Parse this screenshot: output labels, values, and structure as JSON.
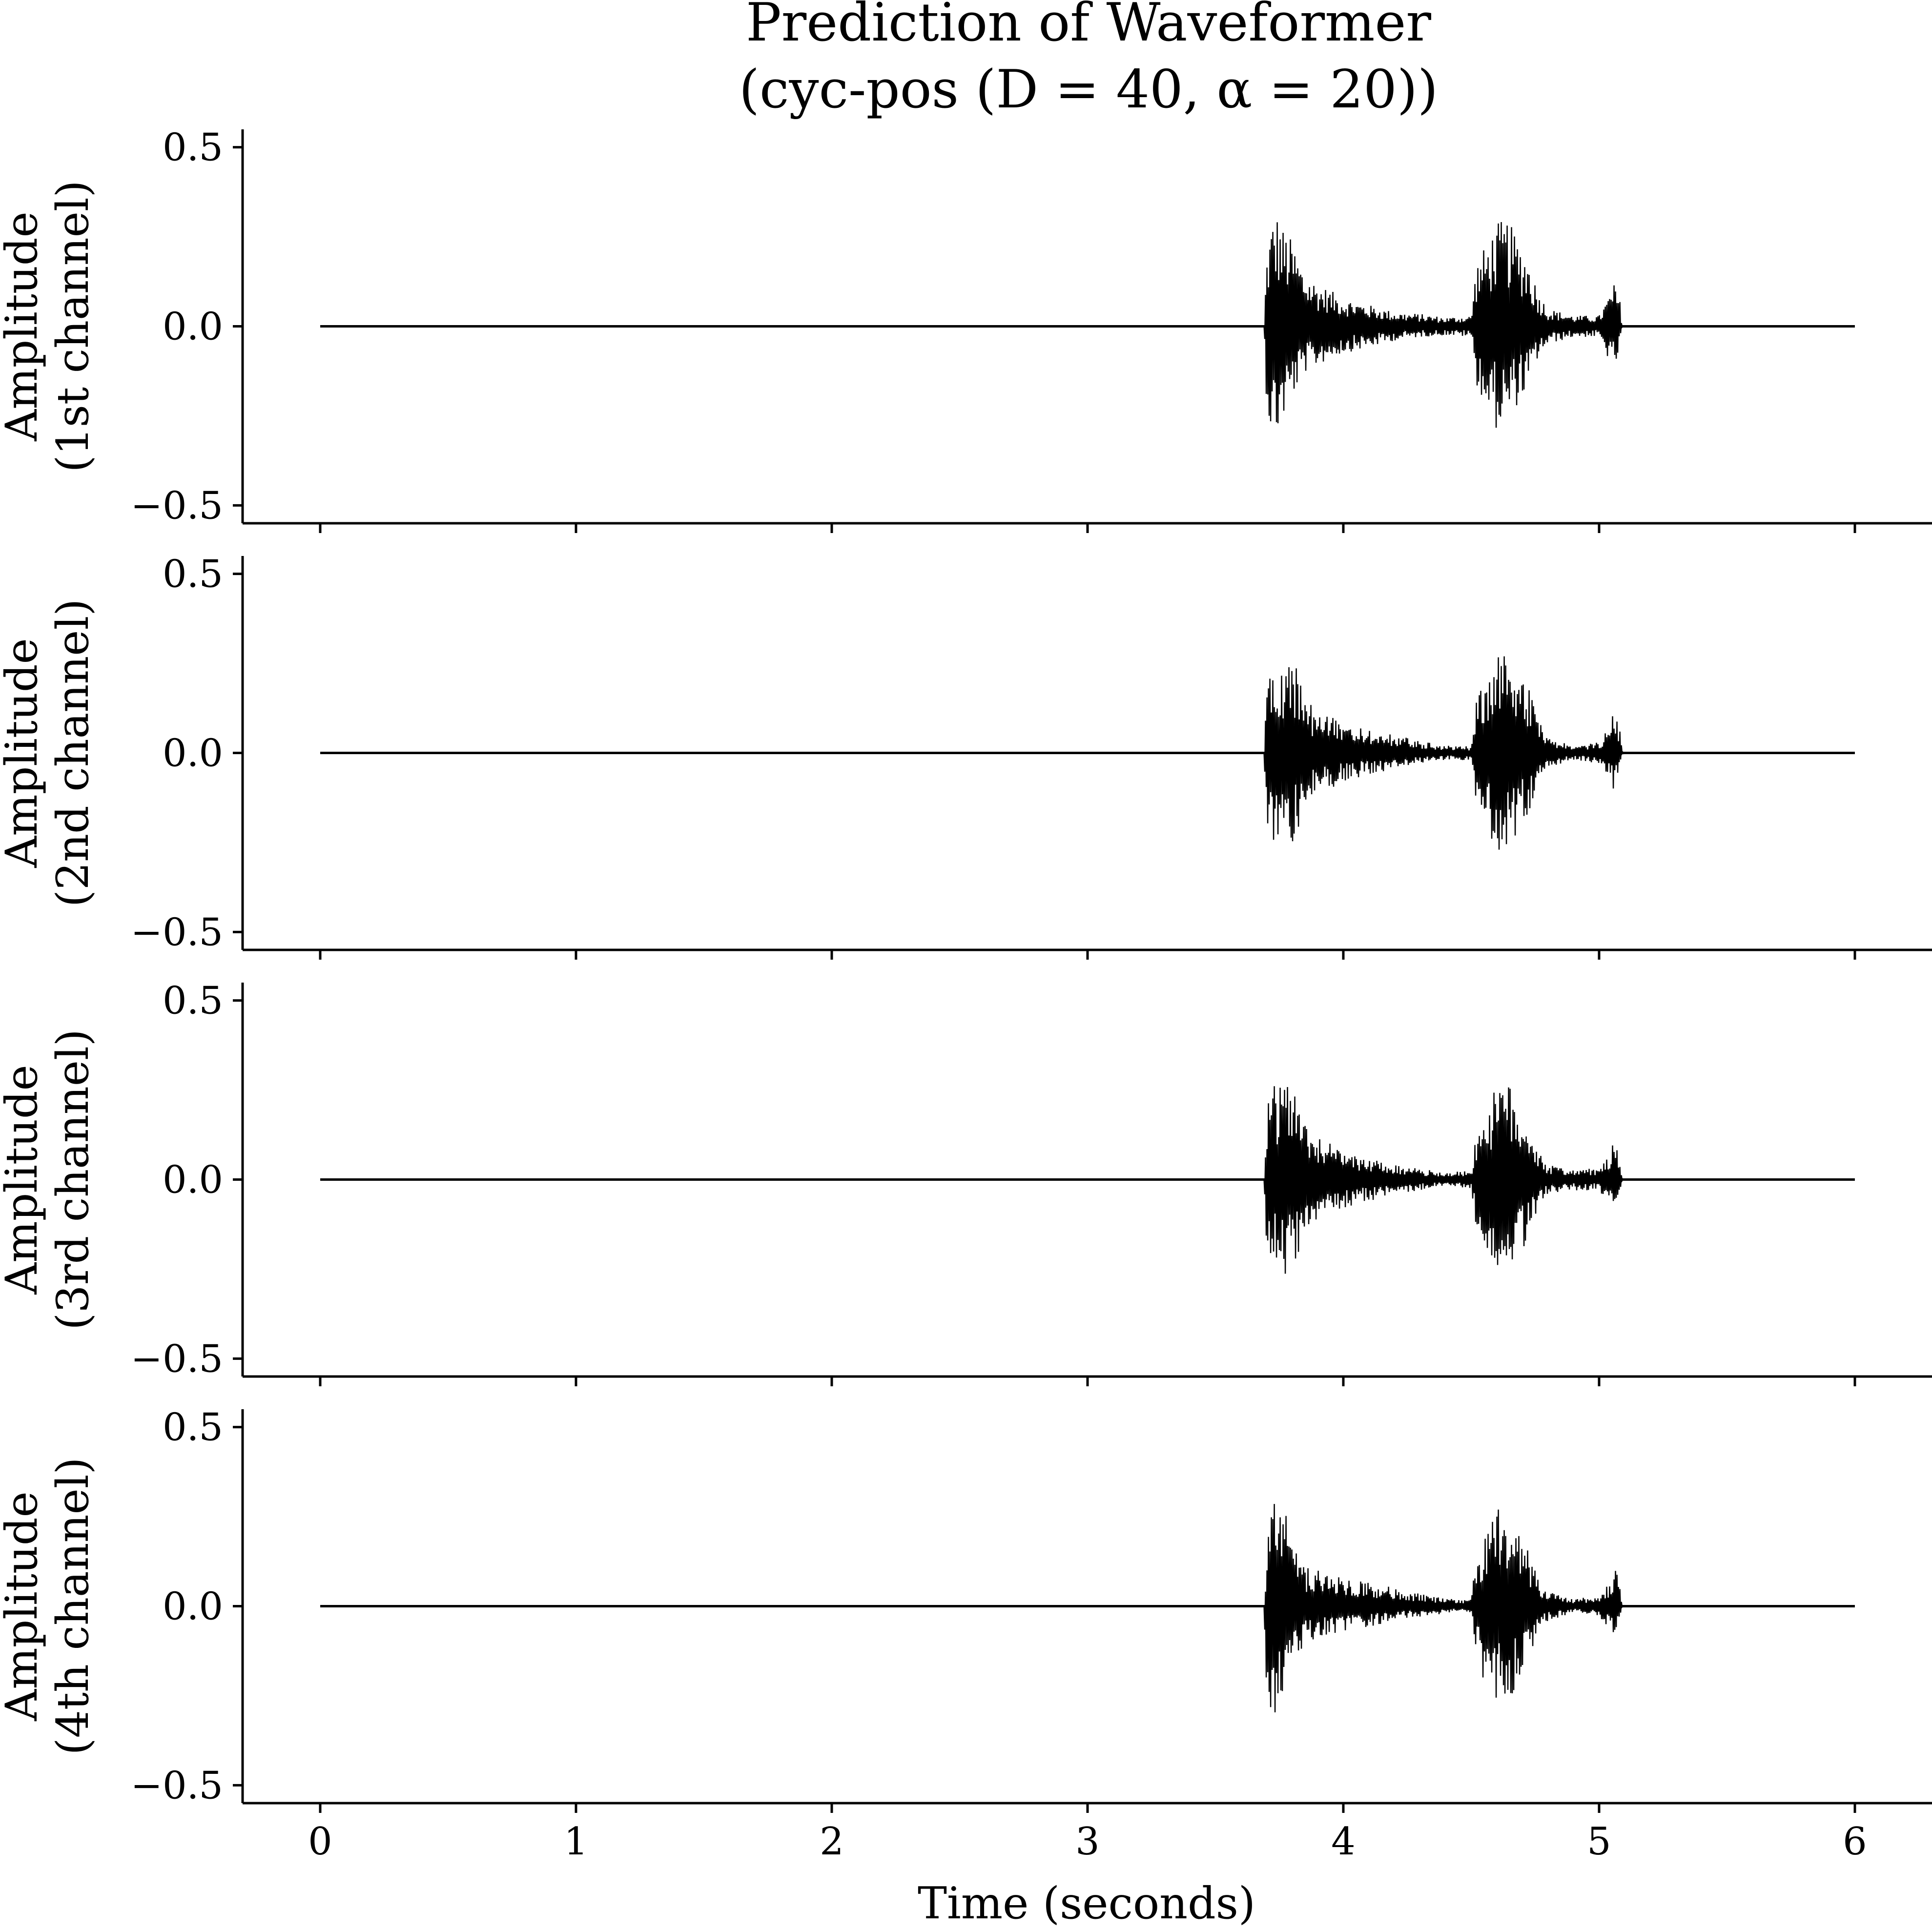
{
  "chart_data": {
    "type": "line",
    "title": "Prediction of Waveformer",
    "subtitle": "(cyc-pos (D = 40, α = 20))",
    "xlabel": "Time (seconds)",
    "xlim": [
      -0.3,
      6.3
    ],
    "ylim": [
      -0.55,
      0.55
    ],
    "x_ticks": [
      "0",
      "1",
      "2",
      "3",
      "4",
      "5",
      "6"
    ],
    "x_tick_values": [
      0,
      1,
      2,
      3,
      4,
      5,
      6
    ],
    "y_ticks": [
      "0.5",
      "0.0",
      "−0.5"
    ],
    "y_tick_values": [
      0.5,
      0.0,
      -0.5
    ],
    "grid": false,
    "line_color": "#000000",
    "panels": [
      {
        "ylabel": [
          "Amplitude",
          "(1st channel)"
        ],
        "envelope": {
          "t": [
            0,
            3.69,
            3.7,
            3.72,
            3.74,
            3.76,
            3.8,
            3.85,
            3.9,
            3.95,
            4.0,
            4.1,
            4.2,
            4.3,
            4.4,
            4.5,
            4.52,
            4.56,
            4.6,
            4.64,
            4.68,
            4.72,
            4.76,
            4.8,
            4.9,
            5.0,
            5.04,
            5.06,
            5.08,
            5.09,
            6.0
          ],
          "upper": [
            0.002,
            0.002,
            0.2,
            0.3,
            0.32,
            0.28,
            0.24,
            0.15,
            0.12,
            0.1,
            0.08,
            0.06,
            0.04,
            0.035,
            0.025,
            0.03,
            0.18,
            0.23,
            0.29,
            0.3,
            0.25,
            0.2,
            0.1,
            0.05,
            0.03,
            0.03,
            0.09,
            0.12,
            0.08,
            0.002,
            0.002
          ],
          "lower": [
            -0.002,
            -0.002,
            -0.22,
            -0.32,
            -0.31,
            -0.27,
            -0.2,
            -0.13,
            -0.11,
            -0.09,
            -0.075,
            -0.06,
            -0.04,
            -0.03,
            -0.025,
            -0.03,
            -0.16,
            -0.24,
            -0.29,
            -0.27,
            -0.22,
            -0.18,
            -0.09,
            -0.05,
            -0.03,
            -0.03,
            -0.1,
            -0.12,
            -0.07,
            -0.002,
            -0.002
          ]
        }
      },
      {
        "ylabel": [
          "Amplitude",
          "(2nd channel)"
        ],
        "envelope": {
          "t": [
            0,
            3.69,
            3.7,
            3.72,
            3.74,
            3.76,
            3.8,
            3.85,
            3.9,
            3.95,
            4.0,
            4.1,
            4.2,
            4.3,
            4.4,
            4.5,
            4.52,
            4.56,
            4.6,
            4.64,
            4.68,
            4.72,
            4.76,
            4.8,
            4.9,
            5.0,
            5.04,
            5.06,
            5.08,
            5.09,
            6.0
          ],
          "upper": [
            0.002,
            0.002,
            0.25,
            0.24,
            0.2,
            0.27,
            0.29,
            0.15,
            0.12,
            0.1,
            0.09,
            0.07,
            0.05,
            0.035,
            0.02,
            0.02,
            0.15,
            0.21,
            0.28,
            0.27,
            0.25,
            0.19,
            0.1,
            0.04,
            0.02,
            0.03,
            0.08,
            0.12,
            0.07,
            0.002,
            0.002
          ],
          "lower": [
            -0.002,
            -0.002,
            -0.2,
            -0.26,
            -0.23,
            -0.27,
            -0.29,
            -0.14,
            -0.12,
            -0.1,
            -0.08,
            -0.06,
            -0.045,
            -0.03,
            -0.02,
            -0.02,
            -0.14,
            -0.22,
            -0.27,
            -0.28,
            -0.23,
            -0.18,
            -0.09,
            -0.04,
            -0.02,
            -0.03,
            -0.07,
            -0.11,
            -0.06,
            -0.002,
            -0.002
          ]
        }
      },
      {
        "ylabel": [
          "Amplitude",
          "(3rd channel)"
        ],
        "envelope": {
          "t": [
            0,
            3.69,
            3.7,
            3.72,
            3.74,
            3.76,
            3.8,
            3.85,
            3.9,
            3.95,
            4.0,
            4.1,
            4.2,
            4.3,
            4.4,
            4.5,
            4.52,
            4.56,
            4.6,
            4.64,
            4.68,
            4.72,
            4.76,
            4.8,
            4.9,
            5.0,
            5.04,
            5.06,
            5.08,
            5.09,
            6.0
          ],
          "upper": [
            0.002,
            0.002,
            0.22,
            0.28,
            0.27,
            0.25,
            0.27,
            0.16,
            0.12,
            0.1,
            0.08,
            0.06,
            0.04,
            0.03,
            0.02,
            0.025,
            0.14,
            0.2,
            0.26,
            0.28,
            0.22,
            0.17,
            0.09,
            0.04,
            0.03,
            0.03,
            0.07,
            0.11,
            0.07,
            0.002,
            0.002
          ],
          "lower": [
            -0.002,
            -0.002,
            -0.24,
            -0.27,
            -0.25,
            -0.26,
            -0.28,
            -0.15,
            -0.11,
            -0.09,
            -0.08,
            -0.06,
            -0.04,
            -0.03,
            -0.02,
            -0.025,
            -0.15,
            -0.22,
            -0.27,
            -0.28,
            -0.22,
            -0.17,
            -0.09,
            -0.04,
            -0.03,
            -0.03,
            -0.07,
            -0.1,
            -0.06,
            -0.002,
            -0.002
          ]
        }
      },
      {
        "ylabel": [
          "Amplitude",
          "(4th channel)"
        ],
        "envelope": {
          "t": [
            0,
            3.69,
            3.7,
            3.72,
            3.74,
            3.76,
            3.8,
            3.85,
            3.9,
            3.95,
            4.0,
            4.1,
            4.2,
            4.3,
            4.4,
            4.5,
            4.52,
            4.56,
            4.6,
            4.64,
            4.68,
            4.72,
            4.76,
            4.8,
            4.9,
            5.0,
            5.04,
            5.06,
            5.08,
            5.09,
            6.0
          ],
          "upper": [
            0.002,
            0.002,
            0.2,
            0.37,
            0.33,
            0.3,
            0.18,
            0.11,
            0.1,
            0.09,
            0.08,
            0.07,
            0.05,
            0.035,
            0.02,
            0.02,
            0.14,
            0.22,
            0.27,
            0.28,
            0.23,
            0.17,
            0.09,
            0.04,
            0.02,
            0.03,
            0.07,
            0.11,
            0.07,
            0.002,
            0.002
          ],
          "lower": [
            -0.002,
            -0.002,
            -0.24,
            -0.37,
            -0.31,
            -0.28,
            -0.17,
            -0.11,
            -0.09,
            -0.08,
            -0.07,
            -0.06,
            -0.04,
            -0.03,
            -0.02,
            -0.02,
            -0.14,
            -0.25,
            -0.26,
            -0.28,
            -0.22,
            -0.16,
            -0.08,
            -0.04,
            -0.02,
            -0.03,
            -0.07,
            -0.1,
            -0.06,
            -0.002,
            -0.002
          ]
        }
      }
    ]
  }
}
